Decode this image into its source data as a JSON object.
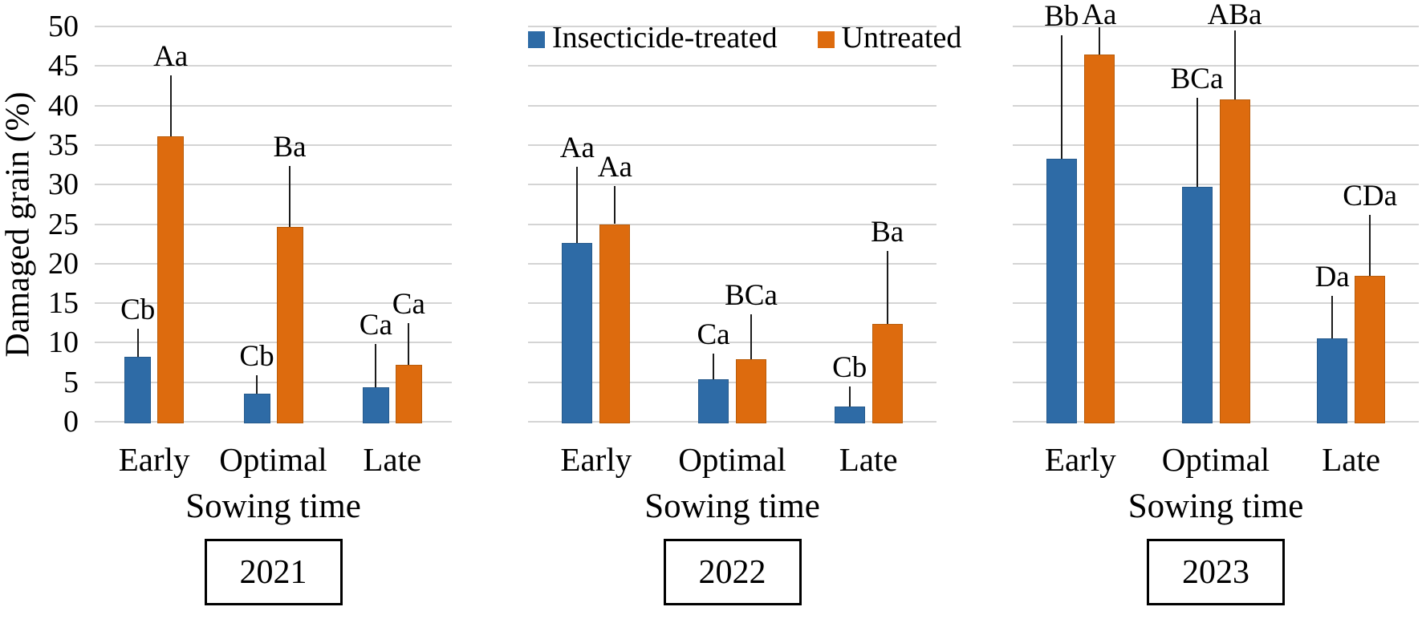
{
  "figure": {
    "y_axis_title": "Damaged grain (%)",
    "x_axis_title": "Sowing time",
    "y_ticks": [
      0,
      5,
      10,
      15,
      20,
      25,
      30,
      35,
      40,
      45,
      50
    ]
  },
  "legend": [
    {
      "label": "Insecticide-treated",
      "color": "#2e6ba6"
    },
    {
      "label": "Untreated",
      "color": "#dd6b0e"
    }
  ],
  "colors": {
    "treated": "#2e6ba6",
    "treated_border": "#265a8c",
    "untreated": "#dd6b0e",
    "untreated_border": "#b95c0a",
    "gridline": "#d4d4d4",
    "error_bar": "#1c1c1c",
    "text": "#000000"
  },
  "chart_data": [
    {
      "type": "bar",
      "year": "2021",
      "title": "",
      "xlabel": "Sowing time",
      "ylabel": "Damaged grain (%)",
      "ylim": [
        0,
        50
      ],
      "grid": true,
      "legend_position": "top-center",
      "categories": [
        "Early",
        "Optimal",
        "Late"
      ],
      "series": [
        {
          "name": "Insecticide-treated",
          "values": [
            8.2,
            3.5,
            4.4
          ],
          "error_top": [
            11.8,
            5.9,
            9.8
          ],
          "letters": [
            "Cb",
            "Cb",
            "Ca"
          ]
        },
        {
          "name": "Untreated",
          "values": [
            36.1,
            24.6,
            7.2
          ],
          "error_top": [
            43.8,
            32.4,
            12.5
          ],
          "letters": [
            "Aa",
            "Ba",
            "Ca"
          ]
        }
      ]
    },
    {
      "type": "bar",
      "year": "2022",
      "title": "",
      "xlabel": "Sowing time",
      "ylabel": "Damaged grain (%)",
      "ylim": [
        0,
        50
      ],
      "grid": true,
      "categories": [
        "Early",
        "Optimal",
        "Late"
      ],
      "series": [
        {
          "name": "Insecticide-treated",
          "values": [
            22.6,
            5.4,
            1.9
          ],
          "error_top": [
            32.3,
            8.6,
            4.5
          ],
          "letters": [
            "Aa",
            "Ca",
            "Cb"
          ]
        },
        {
          "name": "Untreated",
          "values": [
            25.0,
            7.9,
            12.4
          ],
          "error_top": [
            29.8,
            13.6,
            21.6
          ],
          "letters": [
            "Aa",
            "BCa",
            "Ba"
          ]
        }
      ]
    },
    {
      "type": "bar",
      "year": "2023",
      "title": "",
      "xlabel": "Sowing time",
      "ylabel": "Damaged grain (%)",
      "ylim": [
        0,
        50
      ],
      "grid": true,
      "categories": [
        "Early",
        "Optimal",
        "Late"
      ],
      "series": [
        {
          "name": "Insecticide-treated",
          "values": [
            33.3,
            29.7,
            10.5
          ],
          "error_top": [
            48.9,
            41.0,
            15.9
          ],
          "letters": [
            "Bb",
            "BCa",
            "Da"
          ]
        },
        {
          "name": "Untreated",
          "values": [
            46.4,
            40.8,
            18.5
          ],
          "error_top": [
            49.9,
            49.5,
            26.2
          ],
          "letters": [
            "Aa",
            "ABa",
            "CDa"
          ]
        }
      ]
    }
  ]
}
